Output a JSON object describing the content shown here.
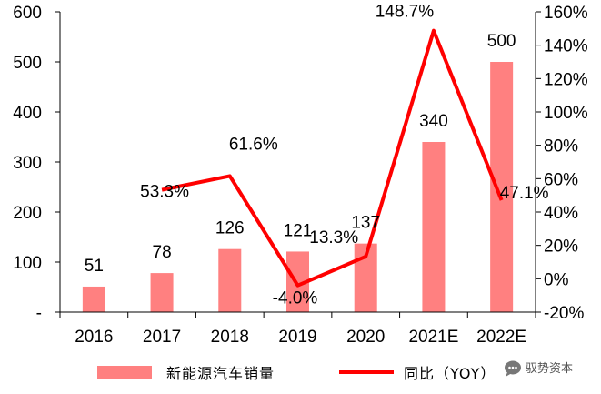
{
  "chart_data": {
    "type": "bar",
    "categories": [
      "2016",
      "2017",
      "2018",
      "2019",
      "2020",
      "2021E",
      "2022E"
    ],
    "series": [
      {
        "name": "新能源汽车销量",
        "type": "bar",
        "axis": "left",
        "color": "#FF8080",
        "values": [
          51,
          78,
          126,
          121,
          137,
          340,
          500
        ],
        "labels": [
          "51",
          "78",
          "126",
          "121",
          "137",
          "340",
          "500"
        ]
      },
      {
        "name": "同比（YOY）",
        "type": "line",
        "axis": "right",
        "color": "#FF0000",
        "values": [
          null,
          53.3,
          61.6,
          -4.0,
          13.3,
          148.7,
          47.1
        ],
        "labels": [
          "",
          "53.3%",
          "61.6%",
          "-4.0%",
          "13.3%",
          "148.7%",
          "47.1%"
        ]
      }
    ],
    "y_left": {
      "ylim": [
        0,
        600
      ],
      "ticks": [
        600,
        500,
        400,
        300,
        200,
        100,
        0
      ],
      "tick_labels": [
        "600",
        "500",
        "400",
        "300",
        "200",
        "100",
        "-"
      ]
    },
    "y_right": {
      "ylim": [
        -20,
        160
      ],
      "ticks": [
        160,
        140,
        120,
        100,
        80,
        60,
        40,
        20,
        0,
        -20
      ],
      "tick_labels": [
        "160%",
        "140%",
        "120%",
        "100%",
        "80%",
        "60%",
        "40%",
        "20%",
        "0%",
        "-20%"
      ]
    },
    "grid": false,
    "legend_position": "bottom"
  },
  "watermark": {
    "text": "驭势资本",
    "icon": "chat-bubble-icon",
    "color": "#555555"
  }
}
